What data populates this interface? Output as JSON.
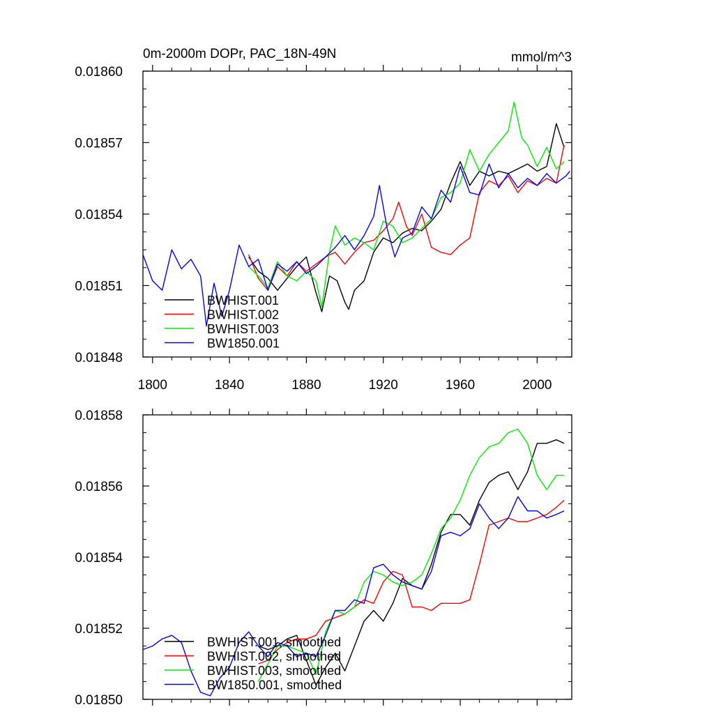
{
  "chart_data": [
    {
      "type": "line",
      "title": "0m-2000m DOPr, PAC_18N-49N",
      "units": "mmol/m^3",
      "xlim": [
        1795,
        2018
      ],
      "ylim": [
        0.01848,
        0.0186
      ],
      "xticks": [
        1800,
        1840,
        1880,
        1920,
        1960,
        2000
      ],
      "xtick_labels": [
        "1800",
        "1840",
        "1880",
        "1920",
        "1960",
        "2000"
      ],
      "yticks": [
        0.01848,
        0.01851,
        0.01854,
        0.01857,
        0.0186
      ],
      "ytick_labels": [
        "0.01848",
        "0.01851",
        "0.01854",
        "0.01857",
        "0.01860"
      ],
      "legend_position": "bottom-left",
      "series": [
        {
          "name": "BWHIST.001",
          "color": "#000000",
          "x": [
            1850,
            1855,
            1860,
            1865,
            1870,
            1875,
            1880,
            1885,
            1888,
            1892,
            1896,
            1900,
            1902,
            1905,
            1910,
            1915,
            1920,
            1925,
            1930,
            1935,
            1940,
            1945,
            1950,
            1955,
            1960,
            1965,
            1970,
            1975,
            1980,
            1985,
            1990,
            1995,
            2000,
            2005,
            2010,
            2014
          ],
          "y": [
            0.018522,
            0.018516,
            0.018513,
            0.018508,
            0.018513,
            0.018518,
            0.018522,
            0.018507,
            0.018499,
            0.018514,
            0.018512,
            0.018503,
            0.0185,
            0.018508,
            0.018512,
            0.018524,
            0.01853,
            0.018528,
            0.018532,
            0.018534,
            0.018533,
            0.018537,
            0.018542,
            0.018553,
            0.018562,
            0.018552,
            0.018558,
            0.018556,
            0.018558,
            0.018557,
            0.018559,
            0.018561,
            0.018558,
            0.01856,
            0.018578,
            0.018568
          ]
        },
        {
          "name": "BWHIST.002",
          "color": "#ff0000",
          "x": [
            1850,
            1855,
            1860,
            1865,
            1870,
            1875,
            1880,
            1885,
            1890,
            1895,
            1900,
            1905,
            1910,
            1915,
            1920,
            1925,
            1928,
            1932,
            1935,
            1940,
            1945,
            1950,
            1955,
            1960,
            1965,
            1970,
            1975,
            1980,
            1985,
            1990,
            1995,
            2000,
            2005,
            2010,
            2014
          ],
          "y": [
            0.018523,
            0.018513,
            0.018508,
            0.018518,
            0.018514,
            0.01852,
            0.018516,
            0.018519,
            0.018522,
            0.018524,
            0.018519,
            0.018524,
            0.018528,
            0.018529,
            0.018533,
            0.018538,
            0.018545,
            0.018535,
            0.018531,
            0.01854,
            0.018526,
            0.018524,
            0.018523,
            0.018527,
            0.01853,
            0.018549,
            0.018554,
            0.018552,
            0.018556,
            0.018549,
            0.018554,
            0.018552,
            0.018555,
            0.018553,
            0.018569
          ]
        },
        {
          "name": "BWHIST.003",
          "color": "#00ee00",
          "x": [
            1850,
            1855,
            1860,
            1865,
            1870,
            1875,
            1880,
            1885,
            1888,
            1892,
            1895,
            1900,
            1905,
            1910,
            1915,
            1920,
            1925,
            1930,
            1935,
            1940,
            1945,
            1950,
            1955,
            1960,
            1965,
            1970,
            1975,
            1980,
            1985,
            1988,
            1992,
            1995,
            2000,
            2005,
            2010,
            2014
          ],
          "y": [
            0.018518,
            0.018514,
            0.018509,
            0.01852,
            0.018514,
            0.018512,
            0.018516,
            0.018512,
            0.018501,
            0.018524,
            0.018535,
            0.018527,
            0.01853,
            0.018528,
            0.018525,
            0.018537,
            0.018535,
            0.018528,
            0.01853,
            0.018534,
            0.018538,
            0.018547,
            0.018549,
            0.018553,
            0.018567,
            0.018558,
            0.018565,
            0.01857,
            0.018575,
            0.018587,
            0.018572,
            0.018569,
            0.01856,
            0.018568,
            0.018559,
            0.018562
          ]
        },
        {
          "name": "BW1850.001",
          "color": "#0000ff",
          "x": [
            1795,
            1800,
            1805,
            1810,
            1815,
            1820,
            1825,
            1828,
            1832,
            1836,
            1840,
            1845,
            1850,
            1855,
            1860,
            1865,
            1870,
            1875,
            1880,
            1885,
            1890,
            1895,
            1900,
            1905,
            1910,
            1915,
            1918,
            1922,
            1926,
            1930,
            1935,
            1940,
            1945,
            1950,
            1955,
            1960,
            1965,
            1970,
            1975,
            1980,
            1985,
            1990,
            1995,
            2000,
            2005,
            2010,
            2015,
            2017
          ],
          "y": [
            0.018523,
            0.018512,
            0.018508,
            0.018525,
            0.018517,
            0.018521,
            0.018514,
            0.018493,
            0.018511,
            0.018497,
            0.018508,
            0.018527,
            0.018518,
            0.018521,
            0.018508,
            0.018519,
            0.018516,
            0.01852,
            0.018515,
            0.018518,
            0.018522,
            0.018526,
            0.018531,
            0.018525,
            0.018531,
            0.018539,
            0.018552,
            0.018534,
            0.018522,
            0.01853,
            0.018532,
            0.018543,
            0.018538,
            0.01855,
            0.018545,
            0.01856,
            0.018549,
            0.018548,
            0.018561,
            0.018551,
            0.018557,
            0.018551,
            0.018555,
            0.018552,
            0.018557,
            0.018553,
            0.018556,
            0.018558
          ]
        }
      ]
    },
    {
      "type": "line",
      "xlim": [
        1795,
        2018
      ],
      "ylim": [
        0.0185,
        0.01858
      ],
      "xticks": [
        1800,
        1840,
        1880,
        1920,
        1960,
        2000
      ],
      "yticks": [
        0.0185,
        0.01852,
        0.01854,
        0.01856,
        0.01858
      ],
      "ytick_labels": [
        "0.01850",
        "0.01852",
        "0.01854",
        "0.01856",
        "0.01858"
      ],
      "legend_position": "bottom-left",
      "series": [
        {
          "name": "BWHIST.001, smoothed",
          "color": "#000000",
          "x": [
            1855,
            1860,
            1865,
            1870,
            1875,
            1880,
            1885,
            1890,
            1895,
            1900,
            1905,
            1910,
            1915,
            1920,
            1925,
            1930,
            1935,
            1940,
            1945,
            1950,
            1955,
            1960,
            1965,
            1970,
            1975,
            1980,
            1985,
            1990,
            1995,
            2000,
            2005,
            2010,
            2014
          ],
          "y": [
            0.018515,
            0.018514,
            0.018515,
            0.018517,
            0.018518,
            0.018511,
            0.018504,
            0.018509,
            0.018513,
            0.018508,
            0.018515,
            0.018522,
            0.018525,
            0.018522,
            0.018527,
            0.018534,
            0.018532,
            0.018531,
            0.018538,
            0.018547,
            0.018552,
            0.018552,
            0.018549,
            0.018556,
            0.018561,
            0.018563,
            0.018564,
            0.018559,
            0.018564,
            0.018572,
            0.018572,
            0.018573,
            0.018572
          ]
        },
        {
          "name": "BWHIST.002, smoothed",
          "color": "#ff0000",
          "x": [
            1855,
            1860,
            1865,
            1870,
            1875,
            1880,
            1885,
            1890,
            1895,
            1900,
            1905,
            1910,
            1915,
            1920,
            1925,
            1930,
            1935,
            1940,
            1945,
            1950,
            1955,
            1960,
            1965,
            1970,
            1975,
            1980,
            1985,
            1990,
            1995,
            2000,
            2005,
            2010,
            2014
          ],
          "y": [
            0.01851,
            0.018511,
            0.018514,
            0.018516,
            0.018517,
            0.018517,
            0.018518,
            0.018522,
            0.018523,
            0.018524,
            0.018526,
            0.018528,
            0.018527,
            0.018533,
            0.018536,
            0.018535,
            0.018526,
            0.018526,
            0.018525,
            0.018527,
            0.018527,
            0.018527,
            0.018528,
            0.018538,
            0.018549,
            0.01855,
            0.018551,
            0.01855,
            0.01855,
            0.018551,
            0.018552,
            0.018554,
            0.018556
          ]
        },
        {
          "name": "BWHIST.003, smoothed",
          "color": "#00ee00",
          "x": [
            1855,
            1860,
            1865,
            1870,
            1875,
            1880,
            1885,
            1890,
            1895,
            1900,
            1905,
            1910,
            1915,
            1920,
            1925,
            1930,
            1935,
            1940,
            1945,
            1950,
            1955,
            1960,
            1965,
            1970,
            1975,
            1980,
            1985,
            1990,
            1995,
            2000,
            2005,
            2010,
            2014
          ],
          "y": [
            0.018505,
            0.01851,
            0.018515,
            0.018515,
            0.018514,
            0.018513,
            0.018507,
            0.018519,
            0.018525,
            0.018524,
            0.018526,
            0.018533,
            0.018536,
            0.018535,
            0.018533,
            0.018532,
            0.018533,
            0.018535,
            0.018541,
            0.018548,
            0.018551,
            0.018556,
            0.018563,
            0.018568,
            0.018571,
            0.018572,
            0.018575,
            0.018576,
            0.018572,
            0.018563,
            0.018559,
            0.018563,
            0.018563
          ]
        },
        {
          "name": "BW1850.001, smoothed",
          "color": "#0000ff",
          "x": [
            1795,
            1800,
            1805,
            1810,
            1815,
            1820,
            1825,
            1830,
            1835,
            1840,
            1845,
            1850,
            1855,
            1860,
            1865,
            1870,
            1875,
            1880,
            1885,
            1890,
            1895,
            1900,
            1905,
            1910,
            1915,
            1920,
            1925,
            1930,
            1935,
            1940,
            1945,
            1950,
            1955,
            1960,
            1965,
            1970,
            1975,
            1980,
            1985,
            1990,
            1995,
            2000,
            2005,
            2010,
            2014
          ],
          "y": [
            0.018514,
            0.018515,
            0.018517,
            0.018518,
            0.018516,
            0.018508,
            0.018502,
            0.018501,
            0.018506,
            0.018509,
            0.018516,
            0.018519,
            0.018515,
            0.018512,
            0.018516,
            0.018515,
            0.018512,
            0.018513,
            0.018512,
            0.018518,
            0.018525,
            0.018525,
            0.018528,
            0.018527,
            0.018537,
            0.018538,
            0.018535,
            0.018533,
            0.018532,
            0.018531,
            0.018536,
            0.018546,
            0.018547,
            0.018546,
            0.018548,
            0.018555,
            0.018551,
            0.018548,
            0.018551,
            0.018557,
            0.018553,
            0.018553,
            0.018551,
            0.018552,
            0.018553
          ]
        }
      ]
    }
  ]
}
